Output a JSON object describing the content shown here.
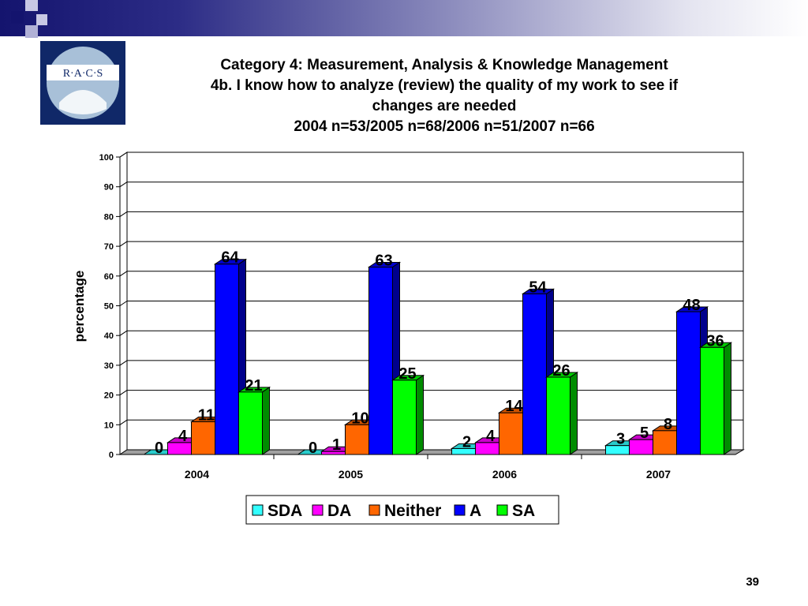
{
  "slide": {
    "logo_text": "R·A·C·S",
    "title_lines": [
      "Category 4: Measurement, Analysis & Knowledge Management",
      "4b. I know how to analyze (review) the quality of my work to see if",
      "changes are needed",
      "2004 n=53/2005 n=68/2006 n=51/2007 n=66"
    ],
    "page_number": "39",
    "colors": {
      "band_dark": "#14146e",
      "logo_bg": "#102868"
    }
  },
  "chart_data": {
    "type": "bar",
    "title": "",
    "xlabel": "",
    "ylabel": "percentage",
    "ylim": [
      0,
      100
    ],
    "yticks": [
      0,
      10,
      20,
      30,
      40,
      50,
      60,
      70,
      80,
      90,
      100
    ],
    "categories": [
      "2004",
      "2005",
      "2006",
      "2007"
    ],
    "series": [
      {
        "name": "SDA",
        "color": "#33ffff",
        "values": [
          0,
          0,
          2,
          3
        ]
      },
      {
        "name": "DA",
        "color": "#ff00ff",
        "values": [
          4,
          1,
          4,
          5
        ]
      },
      {
        "name": "Neither",
        "color": "#ff6600",
        "values": [
          11,
          10,
          14,
          8
        ]
      },
      {
        "name": "A",
        "color": "#0000ff",
        "values": [
          64,
          63,
          54,
          48
        ]
      },
      {
        "name": "SA",
        "color": "#00ff00",
        "values": [
          21,
          25,
          26,
          36
        ]
      }
    ],
    "grid": true,
    "legend_position": "bottom-center",
    "style": "3d-bars"
  }
}
